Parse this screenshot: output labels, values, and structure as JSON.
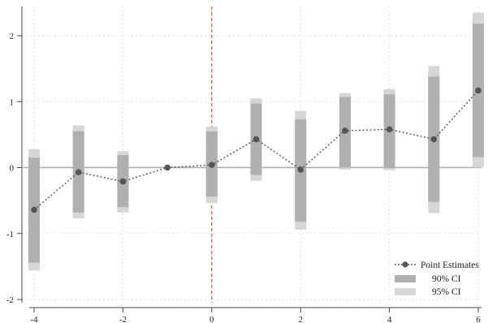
{
  "chart_data": {
    "type": "line",
    "x": [
      -4,
      -3,
      -2,
      -1,
      0,
      1,
      2,
      3,
      4,
      5,
      6
    ],
    "series": [
      {
        "name": "Point Estimates",
        "values": [
          -0.64,
          -0.07,
          -0.21,
          0.0,
          0.04,
          0.43,
          -0.03,
          0.56,
          0.58,
          0.43,
          1.17
        ],
        "ci90": [
          [
            -1.44,
            0.15
          ],
          [
            -0.68,
            0.55
          ],
          [
            -0.6,
            0.19
          ],
          null,
          [
            -0.44,
            0.55
          ],
          [
            -0.11,
            0.97
          ],
          [
            -0.82,
            0.73
          ],
          [
            0.0,
            1.07
          ],
          [
            -0.01,
            1.11
          ],
          [
            -0.52,
            1.38
          ],
          [
            0.16,
            2.18
          ]
        ],
        "ci95": [
          [
            -1.56,
            0.28
          ],
          [
            -0.77,
            0.64
          ],
          [
            -0.68,
            0.25
          ],
          null,
          [
            -0.54,
            0.62
          ],
          [
            -0.2,
            1.05
          ],
          [
            -0.94,
            0.86
          ],
          [
            -0.03,
            1.13
          ],
          [
            -0.04,
            1.19
          ],
          [
            -0.69,
            1.54
          ],
          [
            0.0,
            2.35
          ]
        ]
      }
    ],
    "legend": [
      "Point Estimates",
      "90% CI",
      "95% CI"
    ],
    "legend_position": "bottom-right",
    "xlim": [
      -4,
      6
    ],
    "ylim": [
      -2,
      2
    ],
    "xticks": [
      "-4",
      "-2",
      "0",
      "2",
      "4",
      "6"
    ],
    "yticks": [
      "-2",
      "-1",
      "0",
      "1",
      "2"
    ],
    "reference_lines": {
      "vertical_x": 0,
      "horizontal_y": 0
    },
    "grid": true,
    "colors": {
      "point": "#555555",
      "ci90": "#b0b0b0",
      "ci95": "#d6d6d6",
      "vline": "#c0392b",
      "hline": "#aaaaaa",
      "grid": "#e2e2e2",
      "axis": "#444444"
    }
  }
}
